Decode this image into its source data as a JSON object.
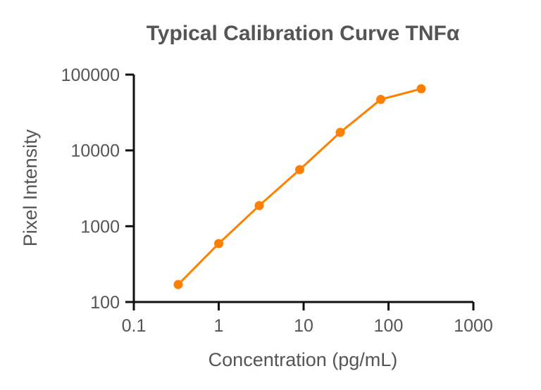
{
  "chart_data": {
    "type": "line",
    "title": "Typical Calibration Curve TNFα",
    "xlabel": "Concentration (pg/mL)",
    "ylabel": "Pixel Intensity",
    "xscale": "log",
    "yscale": "log",
    "xlim": [
      0.1,
      1000
    ],
    "ylim": [
      100,
      100000
    ],
    "xticks": [
      "0.1",
      "1",
      "10",
      "100",
      "1000"
    ],
    "yticks": [
      "100",
      "1000",
      "10000",
      "100000"
    ],
    "grid": false,
    "series": [
      {
        "name": "TNFα",
        "color": "#FF8000",
        "x": [
          0.333,
          1,
          3,
          9,
          27,
          81,
          243
        ],
        "y": [
          170,
          590,
          1870,
          5570,
          17300,
          47000,
          65000
        ]
      }
    ]
  }
}
